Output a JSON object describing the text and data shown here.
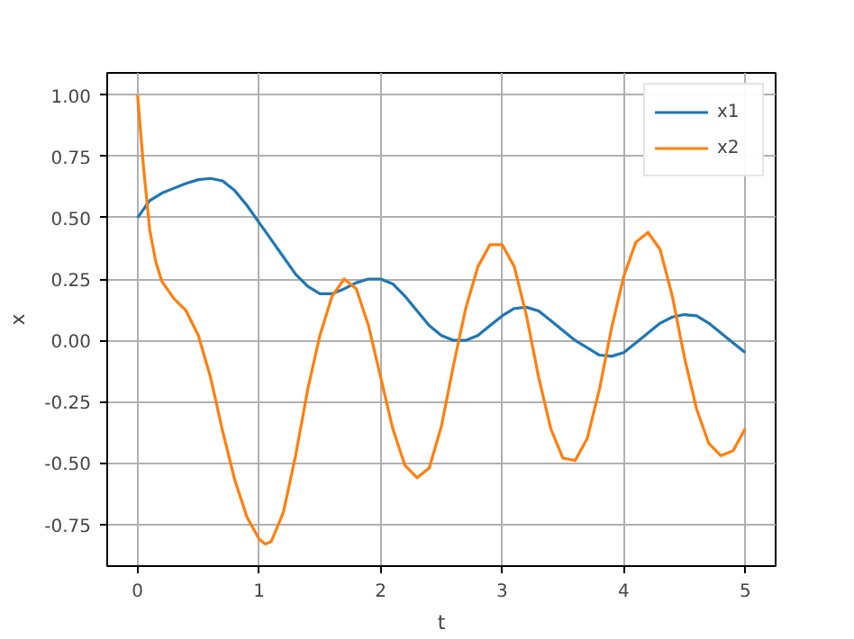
{
  "chart_data": {
    "type": "line",
    "xlabel": "t",
    "ylabel": "x",
    "xlim": [
      -0.25,
      5.25
    ],
    "ylim": [
      -0.92,
      1.09
    ],
    "xticks": [
      0,
      1,
      2,
      3,
      4,
      5
    ],
    "yticks": [
      -0.75,
      {
        "value": -0.5,
        "label": "-0.50"
      },
      -0.25,
      {
        "value": 0,
        "label": "0.00"
      },
      0.25,
      {
        "value": 0.5,
        "label": "0.50"
      },
      0.75,
      {
        "value": 1,
        "label": "1.00"
      }
    ],
    "grid": true,
    "legend": "top right",
    "series": [
      {
        "name": "x1",
        "color": "#1f77b4",
        "x": [
          0,
          0.1,
          0.2,
          0.3,
          0.4,
          0.5,
          0.6,
          0.7,
          0.8,
          0.9,
          1.0,
          1.1,
          1.2,
          1.3,
          1.4,
          1.5,
          1.6,
          1.7,
          1.8,
          1.9,
          2.0,
          2.1,
          2.2,
          2.3,
          2.4,
          2.5,
          2.6,
          2.7,
          2.8,
          2.9,
          3.0,
          3.1,
          3.2,
          3.3,
          3.4,
          3.5,
          3.6,
          3.7,
          3.8,
          3.9,
          4.0,
          4.1,
          4.2,
          4.3,
          4.4,
          4.5,
          4.6,
          4.7,
          4.8,
          4.9,
          5.0
        ],
        "values": [
          0.5,
          0.57,
          0.6,
          0.62,
          0.64,
          0.655,
          0.66,
          0.65,
          0.61,
          0.55,
          0.48,
          0.41,
          0.34,
          0.27,
          0.22,
          0.19,
          0.19,
          0.21,
          0.235,
          0.25,
          0.25,
          0.23,
          0.18,
          0.12,
          0.06,
          0.02,
          0.0,
          0.0,
          0.02,
          0.06,
          0.1,
          0.13,
          0.135,
          0.12,
          0.08,
          0.04,
          0.0,
          -0.03,
          -0.06,
          -0.065,
          -0.05,
          -0.01,
          0.03,
          0.07,
          0.095,
          0.105,
          0.1,
          0.07,
          0.03,
          -0.01,
          -0.05
        ]
      },
      {
        "name": "x2",
        "color": "#ff7f0e",
        "x": [
          0,
          0.05,
          0.1,
          0.15,
          0.2,
          0.3,
          0.4,
          0.5,
          0.6,
          0.7,
          0.8,
          0.9,
          1.0,
          1.05,
          1.1,
          1.2,
          1.3,
          1.4,
          1.5,
          1.6,
          1.7,
          1.8,
          1.9,
          2.0,
          2.1,
          2.2,
          2.3,
          2.4,
          2.5,
          2.6,
          2.7,
          2.8,
          2.9,
          3.0,
          3.1,
          3.2,
          3.3,
          3.4,
          3.5,
          3.6,
          3.7,
          3.8,
          3.9,
          4.0,
          4.1,
          4.2,
          4.3,
          4.4,
          4.5,
          4.6,
          4.7,
          4.8,
          4.9,
          5.0
        ],
        "values": [
          1.0,
          0.7,
          0.45,
          0.32,
          0.24,
          0.17,
          0.12,
          0.02,
          -0.15,
          -0.37,
          -0.57,
          -0.72,
          -0.81,
          -0.83,
          -0.82,
          -0.7,
          -0.47,
          -0.2,
          0.02,
          0.18,
          0.25,
          0.21,
          0.06,
          -0.15,
          -0.36,
          -0.51,
          -0.56,
          -0.52,
          -0.35,
          -0.1,
          0.13,
          0.3,
          0.39,
          0.39,
          0.3,
          0.1,
          -0.15,
          -0.36,
          -0.48,
          -0.49,
          -0.4,
          -0.2,
          0.05,
          0.26,
          0.4,
          0.44,
          0.37,
          0.18,
          -0.07,
          -0.28,
          -0.42,
          -0.47,
          -0.45,
          -0.36
        ]
      }
    ]
  }
}
